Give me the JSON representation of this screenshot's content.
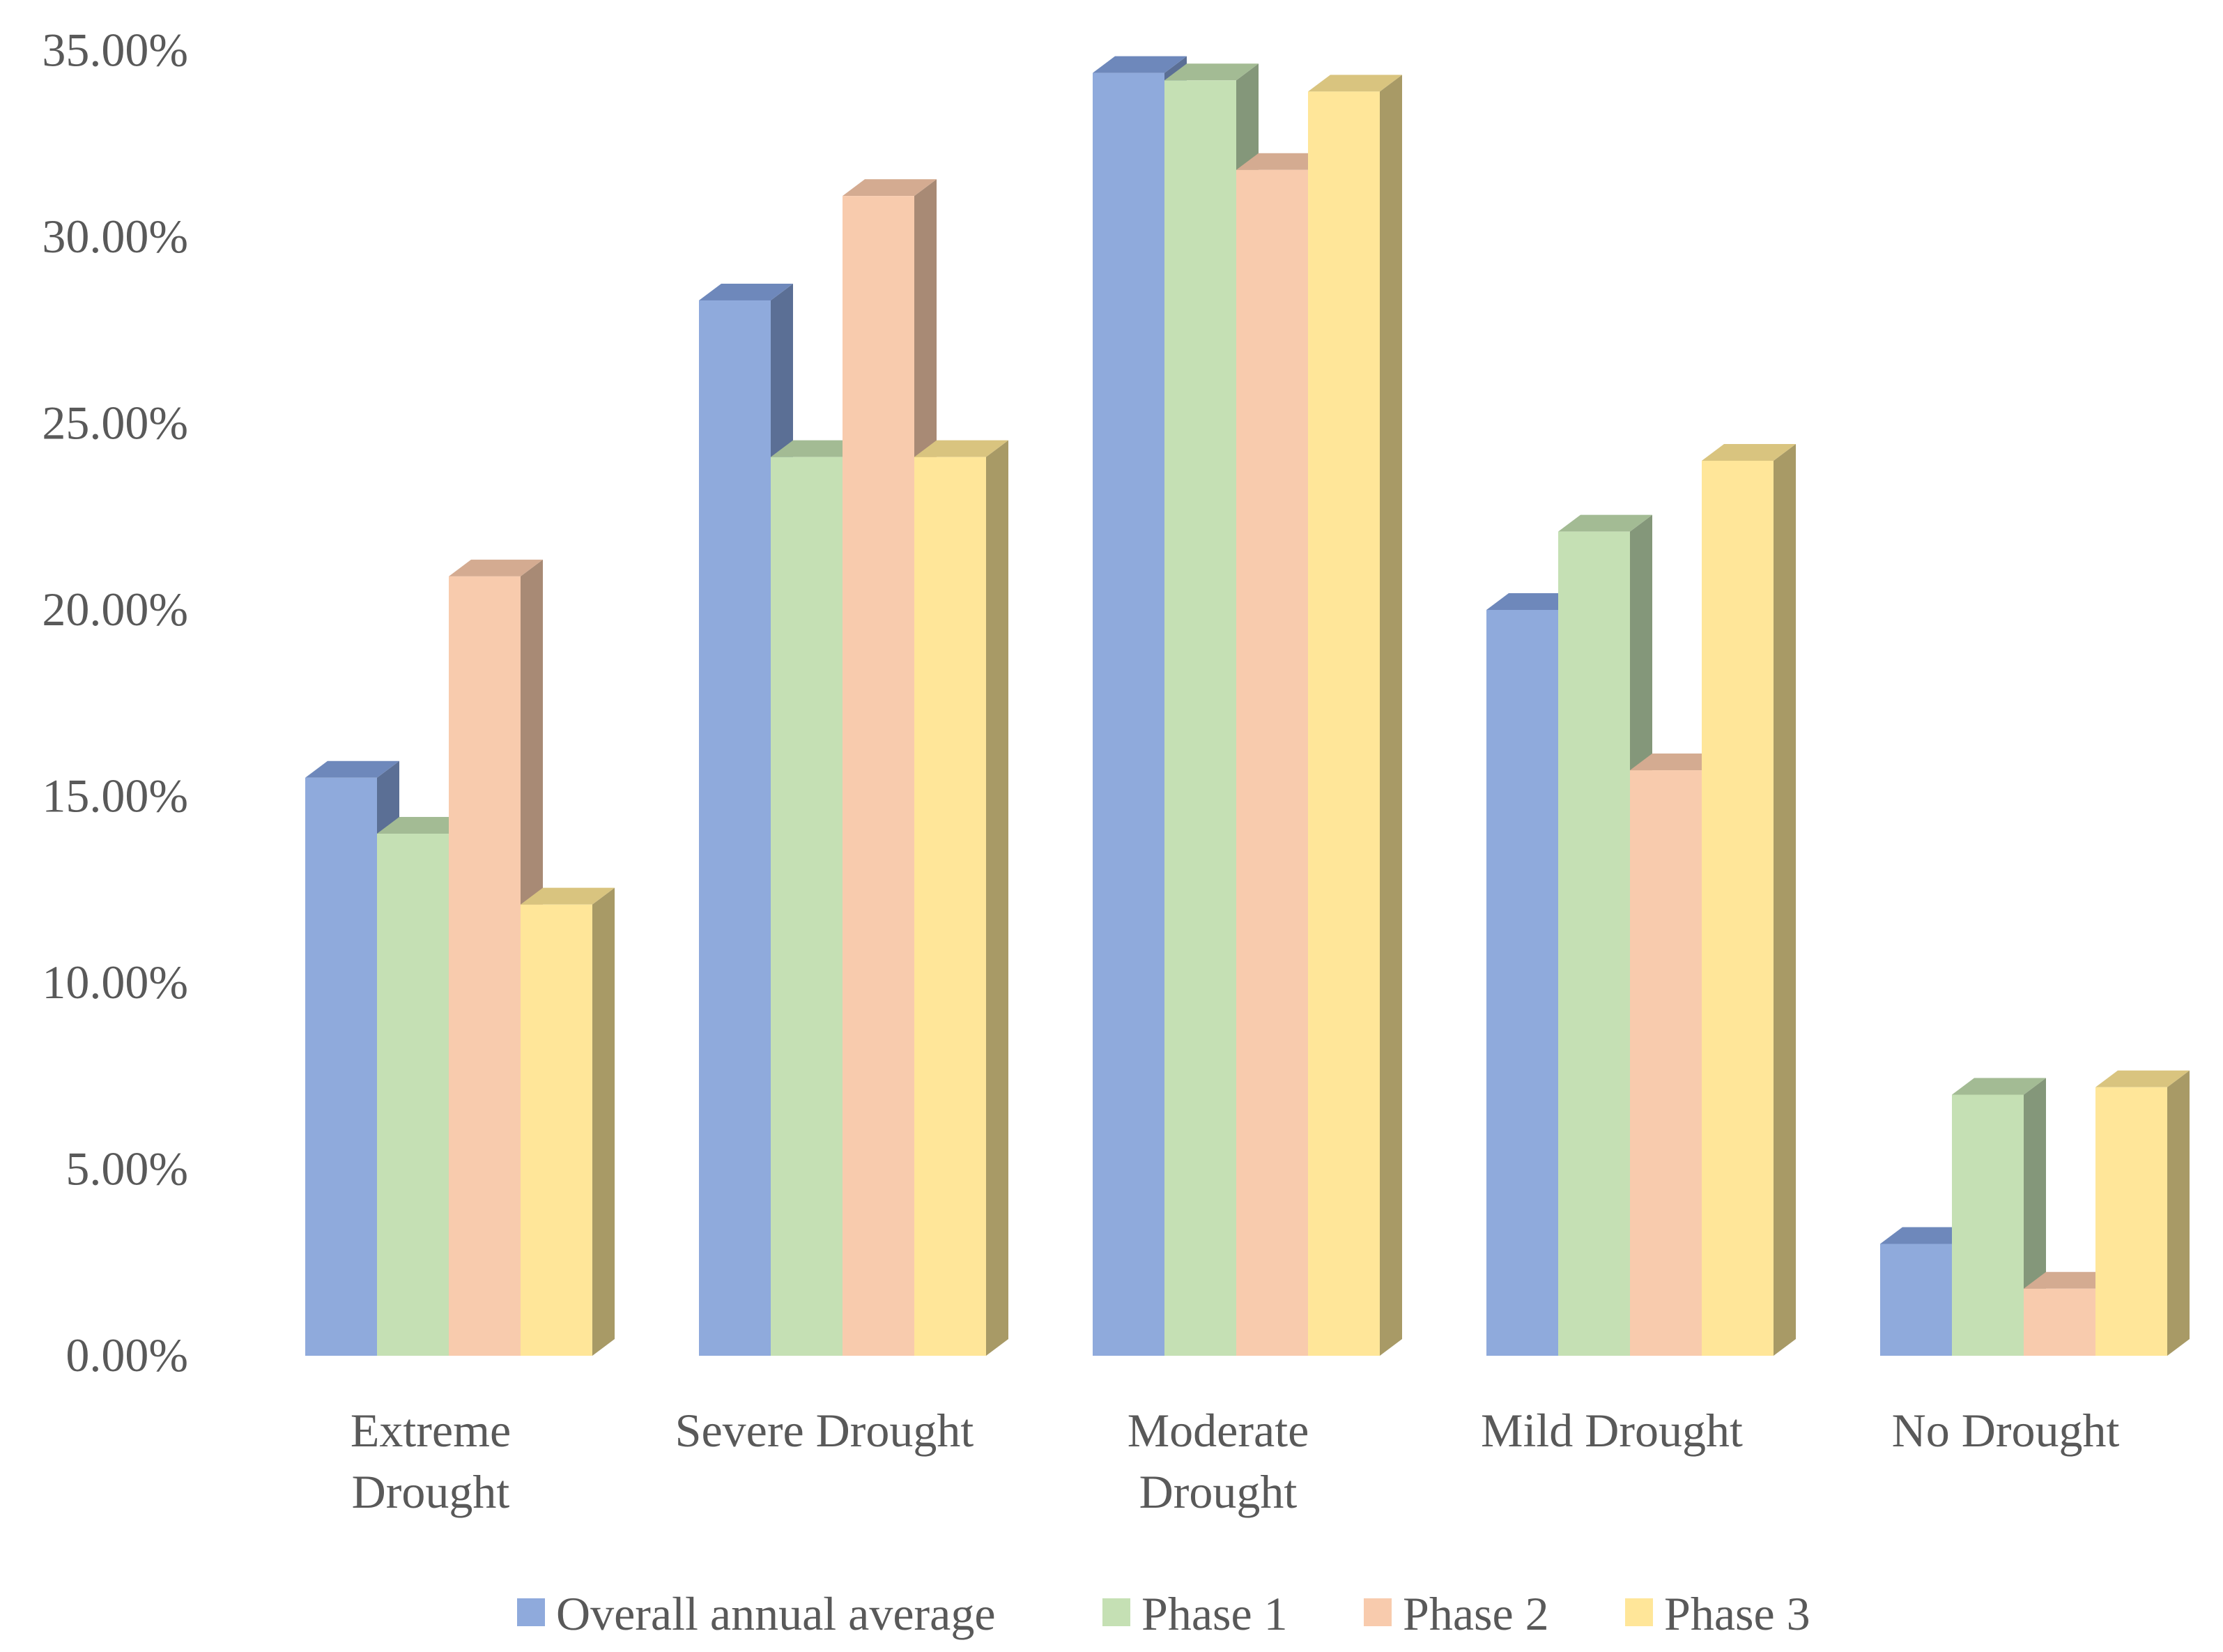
{
  "chart_data": {
    "type": "bar",
    "style": "3d-clustered-column",
    "title": "",
    "xlabel": "",
    "ylabel": "",
    "ylim": [
      0,
      35
    ],
    "y_ticks": [
      "0.00%",
      "5.00%",
      "10.00%",
      "15.00%",
      "20.00%",
      "25.00%",
      "30.00%",
      "35.00%"
    ],
    "grid": false,
    "legend_position": "bottom",
    "categories": [
      [
        "Extreme",
        "Drought"
      ],
      [
        "Severe Drought"
      ],
      [
        "Moderate",
        "Drought"
      ],
      [
        "Mild Drought"
      ],
      [
        "No Drought"
      ]
    ],
    "series": [
      {
        "name": "Overall annual average",
        "color": "#8FAADC",
        "side": "#5B6F95",
        "top": "#6E88BB",
        "values": [
          15.5,
          28.3,
          34.4,
          20.0,
          3.0
        ]
      },
      {
        "name": "Phase 1",
        "color": "#C5E0B4",
        "side": "#84977A",
        "top": "#A3BB94",
        "values": [
          14.0,
          24.1,
          34.2,
          22.1,
          7.0
        ]
      },
      {
        "name": "Phase 2",
        "color": "#F8CBAD",
        "side": "#A88A75",
        "top": "#D4AB91",
        "values": [
          20.9,
          31.1,
          31.8,
          15.7,
          1.8
        ]
      },
      {
        "name": "Phase 3",
        "color": "#FFE699",
        "side": "#A89A66",
        "top": "#D9C47F",
        "values": [
          12.1,
          24.1,
          33.9,
          24.0,
          7.2
        ]
      }
    ]
  }
}
